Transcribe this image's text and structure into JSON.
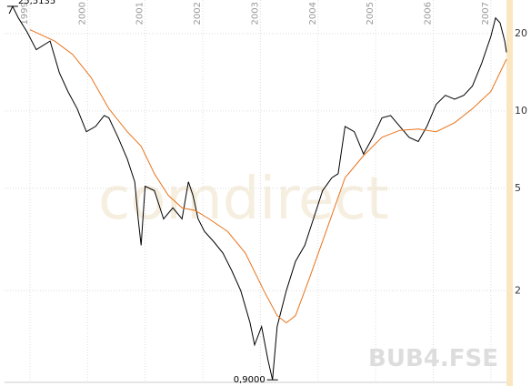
{
  "chart_data": {
    "type": "line",
    "symbol": "BUB4.FSE",
    "watermark": "comdirect",
    "log_scale": true,
    "grid": true,
    "xlim": [
      1998.56,
      2007.27
    ],
    "xticks": [
      1999,
      2000,
      2001,
      2002,
      2003,
      2004,
      2005,
      2006,
      2007
    ],
    "ylim": [
      0.88,
      27
    ],
    "yticks": [
      2,
      5,
      10,
      20
    ],
    "series": [
      {
        "color": "#000000",
        "x": [
          1998.64,
          1998.7,
          1998.8,
          1998.95,
          1999.11,
          1999.35,
          1999.51,
          1999.66,
          1999.82,
          1999.98,
          2000.14,
          2000.29,
          2000.37,
          2000.53,
          2000.69,
          2000.82,
          2000.88,
          2000.93,
          2001.0,
          2001.16,
          2001.32,
          2001.48,
          2001.64,
          2001.75,
          2001.83,
          2001.92,
          2002.03,
          2002.19,
          2002.35,
          2002.5,
          2002.66,
          2002.82,
          2002.9,
          2003.02,
          2003.13,
          2003.21,
          2003.29,
          2003.45,
          2003.61,
          2003.77,
          2003.92,
          2004.08,
          2004.24,
          2004.35,
          2004.47,
          2004.63,
          2004.79,
          2004.95,
          2005.11,
          2005.26,
          2005.42,
          2005.58,
          2005.74,
          2005.89,
          2006.05,
          2006.21,
          2006.37,
          2006.53,
          2006.68,
          2006.84,
          2007.0,
          2007.08,
          2007.16,
          2007.24,
          2007.27
        ],
        "values": [
          23.9,
          25.5,
          23.0,
          20.3,
          17.3,
          18.7,
          14.1,
          11.9,
          10.2,
          8.3,
          8.7,
          9.6,
          9.4,
          7.9,
          6.5,
          5.3,
          3.8,
          3.0,
          5.1,
          4.9,
          3.8,
          4.2,
          3.8,
          5.3,
          4.7,
          3.8,
          3.4,
          3.1,
          2.8,
          2.4,
          2.0,
          1.5,
          1.23,
          1.45,
          1.08,
          0.9,
          1.45,
          2.0,
          2.6,
          3.0,
          3.8,
          4.9,
          5.5,
          5.7,
          8.7,
          8.3,
          6.8,
          7.9,
          9.4,
          9.6,
          8.7,
          7.9,
          7.6,
          8.7,
          10.6,
          11.5,
          11.1,
          11.5,
          12.5,
          15.3,
          19.5,
          23.0,
          22.0,
          18.7,
          16.9
        ]
      },
      {
        "color": "#e8731a",
        "x": [
          1999.0,
          1999.43,
          1999.74,
          2000.06,
          2000.37,
          2000.69,
          2000.93,
          2001.16,
          2001.4,
          2001.64,
          2001.87,
          2002.11,
          2002.43,
          2002.74,
          2003.06,
          2003.29,
          2003.45,
          2003.61,
          2003.84,
          2004.16,
          2004.47,
          2004.79,
          2005.11,
          2005.42,
          2005.74,
          2006.05,
          2006.37,
          2006.68,
          2007.0,
          2007.27
        ],
        "values": [
          20.7,
          18.7,
          16.6,
          13.5,
          10.2,
          8.3,
          7.3,
          5.7,
          4.7,
          4.2,
          4.1,
          3.8,
          3.4,
          2.8,
          2.0,
          1.6,
          1.5,
          1.6,
          2.2,
          3.5,
          5.5,
          6.7,
          7.9,
          8.4,
          8.5,
          8.3,
          9.0,
          10.2,
          11.9,
          15.9
        ]
      }
    ],
    "annotations": [
      {
        "label": "25,5135",
        "value": 25.5135,
        "x": 1998.7
      },
      {
        "label": "0,9000",
        "value": 0.9,
        "x": 2003.21
      }
    ]
  }
}
